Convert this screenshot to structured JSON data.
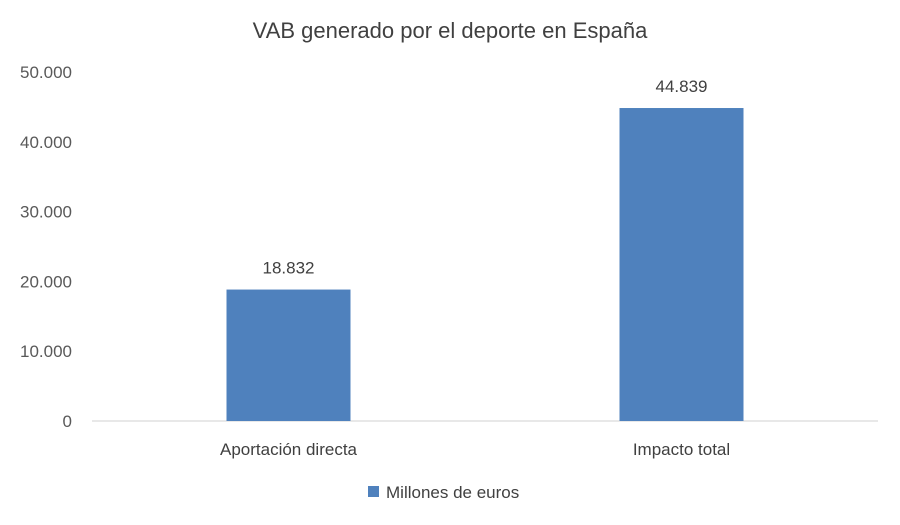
{
  "chart_data": {
    "type": "bar",
    "title": "VAB generado por el deporte en España",
    "categories": [
      "Aportación directa",
      "Impacto total"
    ],
    "series": [
      {
        "name": "Millones de euros",
        "values": [
          18832,
          44839
        ],
        "color": "#4F81BD"
      }
    ],
    "data_labels": [
      "18.832",
      "44.839"
    ],
    "ylim": [
      0,
      50000
    ],
    "yticks": [
      0,
      10000,
      20000,
      30000,
      40000,
      50000
    ],
    "ytick_labels": [
      "0",
      "10.000",
      "20.000",
      "30.000",
      "40.000",
      "50.000"
    ],
    "grid": false,
    "legend_position": "bottom",
    "xlabel": "",
    "ylabel": ""
  }
}
